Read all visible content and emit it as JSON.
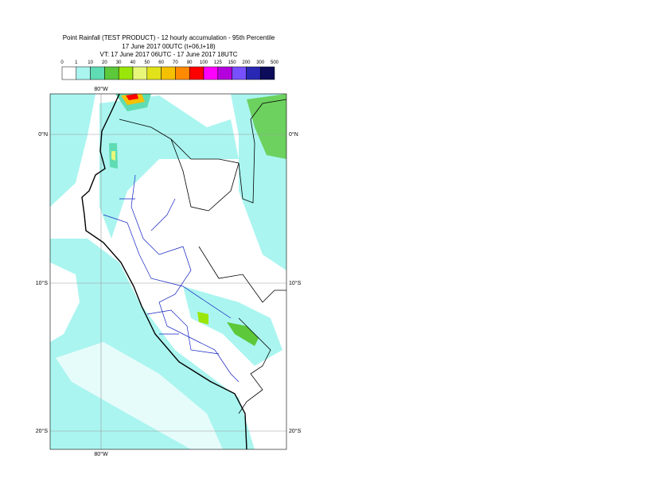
{
  "header": {
    "title": "Point Rainfall (TEST PRODUCT) - 12 hourly accumulation - 95th Percentile",
    "run": "17 June 2017 00UTC (t+06,t+18)",
    "valid": "VT: 17 June 2017 06UTC - 17 June 2017 18UTC"
  },
  "legend": {
    "labels": [
      0,
      1,
      10,
      20,
      30,
      40,
      50,
      60,
      70,
      80,
      100,
      125,
      150,
      200,
      300,
      500
    ],
    "colors": [
      "#ffffff",
      "#aaf5f0",
      "#5fdcb4",
      "#5cc83a",
      "#9be60a",
      "#e8f77a",
      "#e1e21a",
      "#f5c000",
      "#ff8a00",
      "#ff0000",
      "#ff00ff",
      "#b400dc",
      "#7850ff",
      "#2828b4",
      "#0c0c5a"
    ]
  },
  "map": {
    "lon_labels": [
      "80°W"
    ],
    "lat_labels": [
      "0°N",
      "10°S",
      "20°S"
    ]
  }
}
